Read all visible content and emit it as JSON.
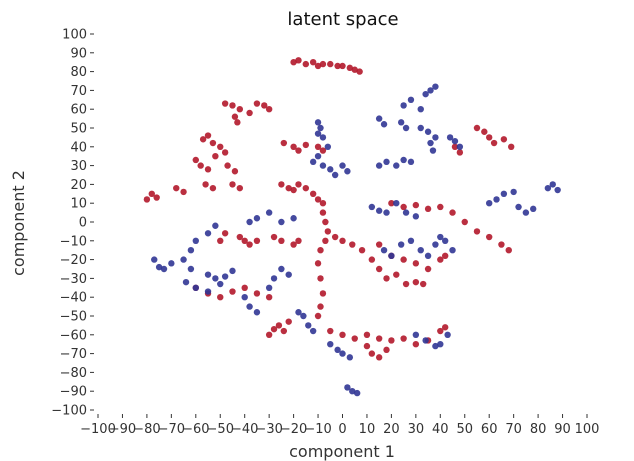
{
  "chart_data": {
    "type": "scatter",
    "title": "latent space",
    "xlabel": "component 1",
    "ylabel": "component 2",
    "xlim": [
      -100,
      100
    ],
    "ylim": [
      -100,
      100
    ],
    "xticks": [
      -100,
      -90,
      -80,
      -70,
      -60,
      -50,
      -40,
      -30,
      -20,
      -10,
      0,
      10,
      20,
      30,
      40,
      50,
      60,
      70,
      80,
      90,
      100
    ],
    "yticks": [
      -100,
      -90,
      -80,
      -70,
      -60,
      -50,
      -40,
      -30,
      -20,
      -10,
      0,
      10,
      20,
      30,
      40,
      50,
      60,
      70,
      80,
      90,
      100
    ],
    "grid": false,
    "series": [
      {
        "color": "#b2182b",
        "points": [
          [
            -20,
            85
          ],
          [
            -18,
            86
          ],
          [
            -15,
            84
          ],
          [
            -12,
            85
          ],
          [
            -10,
            83
          ],
          [
            -8,
            84
          ],
          [
            -5,
            84
          ],
          [
            -2,
            83
          ],
          [
            0,
            83
          ],
          [
            3,
            82
          ],
          [
            5,
            81
          ],
          [
            7,
            80
          ],
          [
            -48,
            63
          ],
          [
            -45,
            62
          ],
          [
            -42,
            60
          ],
          [
            -38,
            58
          ],
          [
            -35,
            63
          ],
          [
            -32,
            62
          ],
          [
            -30,
            60
          ],
          [
            -44,
            56
          ],
          [
            -43,
            53
          ],
          [
            -55,
            46
          ],
          [
            -57,
            44
          ],
          [
            -53,
            42
          ],
          [
            -50,
            40
          ],
          [
            -48,
            37
          ],
          [
            -52,
            35
          ],
          [
            -60,
            33
          ],
          [
            -58,
            30
          ],
          [
            -55,
            28
          ],
          [
            -47,
            30
          ],
          [
            -44,
            27
          ],
          [
            -24,
            42
          ],
          [
            -20,
            40
          ],
          [
            -18,
            38
          ],
          [
            -15,
            41
          ],
          [
            -10,
            40
          ],
          [
            -8,
            38
          ],
          [
            55,
            50
          ],
          [
            58,
            48
          ],
          [
            60,
            45
          ],
          [
            62,
            42
          ],
          [
            66,
            44
          ],
          [
            69,
            40
          ],
          [
            46,
            40
          ],
          [
            48,
            37
          ],
          [
            -80,
            12
          ],
          [
            -78,
            15
          ],
          [
            -76,
            13
          ],
          [
            -68,
            18
          ],
          [
            -65,
            16
          ],
          [
            -56,
            20
          ],
          [
            -53,
            18
          ],
          [
            -45,
            20
          ],
          [
            -42,
            18
          ],
          [
            -42,
            -8
          ],
          [
            -40,
            -10
          ],
          [
            -38,
            -12
          ],
          [
            -48,
            -6
          ],
          [
            -50,
            -10
          ],
          [
            -35,
            -10
          ],
          [
            -28,
            -8
          ],
          [
            -25,
            -10
          ],
          [
            -20,
            -12
          ],
          [
            -18,
            -10
          ],
          [
            -25,
            20
          ],
          [
            -22,
            18
          ],
          [
            -20,
            17
          ],
          [
            -18,
            20
          ],
          [
            -15,
            18
          ],
          [
            -12,
            15
          ],
          [
            -10,
            12
          ],
          [
            -8,
            10
          ],
          [
            -8,
            5
          ],
          [
            -7,
            0
          ],
          [
            -6,
            -5
          ],
          [
            -7,
            -10
          ],
          [
            -9,
            -15
          ],
          [
            -10,
            -22
          ],
          [
            -9,
            -30
          ],
          [
            -8,
            -38
          ],
          [
            -9,
            -45
          ],
          [
            -10,
            -50
          ],
          [
            -3,
            -8
          ],
          [
            0,
            -10
          ],
          [
            4,
            -12
          ],
          [
            8,
            -15
          ],
          [
            12,
            -20
          ],
          [
            15,
            -25
          ],
          [
            18,
            -30
          ],
          [
            22,
            -28
          ],
          [
            26,
            -33
          ],
          [
            30,
            -32
          ],
          [
            33,
            -33
          ],
          [
            15,
            -12
          ],
          [
            20,
            -18
          ],
          [
            25,
            -20
          ],
          [
            30,
            -22
          ],
          [
            35,
            -25
          ],
          [
            40,
            -20
          ],
          [
            42,
            -18
          ],
          [
            20,
            10
          ],
          [
            25,
            8
          ],
          [
            30,
            9
          ],
          [
            35,
            7
          ],
          [
            40,
            8
          ],
          [
            45,
            5
          ],
          [
            50,
            0
          ],
          [
            55,
            -5
          ],
          [
            60,
            -8
          ],
          [
            65,
            -12
          ],
          [
            68,
            -15
          ],
          [
            -60,
            -35
          ],
          [
            -55,
            -38
          ],
          [
            -50,
            -40
          ],
          [
            -45,
            -37
          ],
          [
            -40,
            -35
          ],
          [
            -35,
            -38
          ],
          [
            -30,
            -40
          ],
          [
            -30,
            -60
          ],
          [
            -28,
            -57
          ],
          [
            -26,
            -55
          ],
          [
            -24,
            -58
          ],
          [
            -22,
            -53
          ],
          [
            -5,
            -58
          ],
          [
            0,
            -60
          ],
          [
            5,
            -62
          ],
          [
            10,
            -60
          ],
          [
            15,
            -62
          ],
          [
            20,
            -63
          ],
          [
            25,
            -62
          ],
          [
            30,
            -65
          ],
          [
            35,
            -63
          ],
          [
            40,
            -58
          ],
          [
            42,
            -56
          ],
          [
            12,
            -70
          ],
          [
            15,
            -72
          ],
          [
            18,
            -68
          ],
          [
            10,
            -66
          ]
        ]
      },
      {
        "color": "#313695",
        "points": [
          [
            -10,
            53
          ],
          [
            -9,
            50
          ],
          [
            -10,
            47
          ],
          [
            -8,
            45
          ],
          [
            -6,
            40
          ],
          [
            15,
            55
          ],
          [
            17,
            52
          ],
          [
            25,
            62
          ],
          [
            28,
            65
          ],
          [
            32,
            60
          ],
          [
            34,
            68
          ],
          [
            36,
            70
          ],
          [
            38,
            72
          ],
          [
            24,
            53
          ],
          [
            26,
            50
          ],
          [
            32,
            50
          ],
          [
            35,
            48
          ],
          [
            38,
            45
          ],
          [
            36,
            42
          ],
          [
            37,
            38
          ],
          [
            -8,
            30
          ],
          [
            -5,
            28
          ],
          [
            -3,
            25
          ],
          [
            0,
            30
          ],
          [
            2,
            27
          ],
          [
            -12,
            32
          ],
          [
            -10,
            35
          ],
          [
            15,
            30
          ],
          [
            18,
            32
          ],
          [
            22,
            30
          ],
          [
            25,
            33
          ],
          [
            28,
            32
          ],
          [
            44,
            45
          ],
          [
            46,
            43
          ],
          [
            48,
            40
          ],
          [
            60,
            10
          ],
          [
            63,
            12
          ],
          [
            66,
            15
          ],
          [
            70,
            16
          ],
          [
            72,
            8
          ],
          [
            75,
            5
          ],
          [
            78,
            7
          ],
          [
            84,
            18
          ],
          [
            86,
            20
          ],
          [
            88,
            17
          ],
          [
            -77,
            -20
          ],
          [
            -75,
            -24
          ],
          [
            -73,
            -25
          ],
          [
            -70,
            -22
          ],
          [
            -65,
            -20
          ],
          [
            -62,
            -15
          ],
          [
            -60,
            -10
          ],
          [
            -55,
            -6
          ],
          [
            -52,
            -2
          ],
          [
            -62,
            -25
          ],
          [
            -64,
            -32
          ],
          [
            -60,
            -35
          ],
          [
            -55,
            -37
          ],
          [
            -50,
            -33
          ],
          [
            -38,
            0
          ],
          [
            -35,
            2
          ],
          [
            -30,
            5
          ],
          [
            -25,
            0
          ],
          [
            -20,
            2
          ],
          [
            -30,
            -35
          ],
          [
            -28,
            -30
          ],
          [
            -25,
            -25
          ],
          [
            -22,
            -28
          ],
          [
            -40,
            -40
          ],
          [
            -38,
            -45
          ],
          [
            -35,
            -48
          ],
          [
            -18,
            -48
          ],
          [
            -16,
            -50
          ],
          [
            -14,
            -55
          ],
          [
            -12,
            -58
          ],
          [
            -5,
            -65
          ],
          [
            -2,
            -68
          ],
          [
            0,
            -70
          ],
          [
            3,
            -72
          ],
          [
            2,
            -88
          ],
          [
            4,
            -90
          ],
          [
            6,
            -91
          ],
          [
            12,
            8
          ],
          [
            15,
            6
          ],
          [
            18,
            5
          ],
          [
            22,
            10
          ],
          [
            26,
            5
          ],
          [
            30,
            3
          ],
          [
            17,
            -15
          ],
          [
            20,
            -18
          ],
          [
            24,
            -12
          ],
          [
            28,
            -10
          ],
          [
            32,
            -15
          ],
          [
            35,
            -18
          ],
          [
            38,
            -12
          ],
          [
            40,
            -8
          ],
          [
            42,
            -10
          ],
          [
            45,
            -15
          ],
          [
            30,
            -60
          ],
          [
            34,
            -63
          ],
          [
            38,
            -66
          ],
          [
            40,
            -65
          ],
          [
            43,
            -60
          ],
          [
            -55,
            -28
          ],
          [
            -52,
            -30
          ],
          [
            -48,
            -29
          ],
          [
            -45,
            -26
          ]
        ]
      }
    ]
  }
}
